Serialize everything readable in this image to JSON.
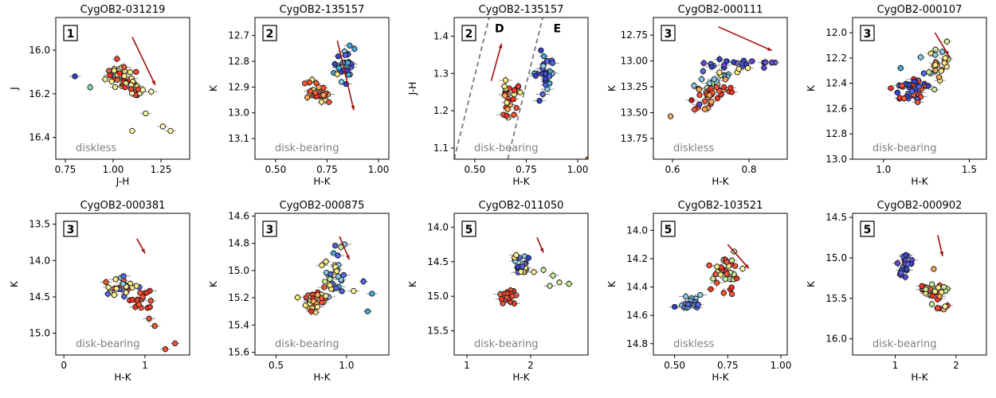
{
  "chart_data": [
    {
      "type": "scatter",
      "title": "CygOB2-031219",
      "badge": "1",
      "regime_label": "diskless",
      "xlabel": "J-H",
      "ylabel": "J",
      "xlim": [
        0.7,
        1.4
      ],
      "ylim": [
        16.5,
        15.85
      ],
      "xticks": [
        "0.75",
        "1.00",
        "1.25"
      ],
      "xtick_values": [
        0.75,
        1.0,
        1.25
      ],
      "yticks": [
        "16.0",
        "16.2",
        "16.4"
      ],
      "ytick_values": [
        16.0,
        16.2,
        16.4
      ],
      "arrow": {
        "from": [
          1.1,
          15.94
        ],
        "to": [
          1.22,
          16.16
        ]
      },
      "clusters": [
        {
          "cx": 1.06,
          "cy": 16.14,
          "sx": 0.045,
          "sy": 0.03,
          "n": 40,
          "tilt": 0.7,
          "colors": [
            "#ff3322",
            "#ff5533",
            "#ffee88",
            "#f0f080"
          ]
        },
        {
          "cx": 1.12,
          "cy": 16.18,
          "sx": 0.03,
          "sy": 0.02,
          "n": 10,
          "tilt": 0.3,
          "colors": [
            "#88cc88",
            "#ffffaa",
            "#ff4433"
          ]
        }
      ],
      "outliers": [
        {
          "x": 0.8,
          "y": 16.12,
          "c": "#3344cc"
        },
        {
          "x": 0.88,
          "y": 16.17,
          "c": "#88ddaa"
        },
        {
          "x": 1.02,
          "y": 16.04,
          "c": "#ff4433"
        },
        {
          "x": 1.17,
          "y": 16.29,
          "c": "#ffffaa"
        },
        {
          "x": 1.1,
          "y": 16.37,
          "c": "#ffffaa"
        },
        {
          "x": 1.26,
          "y": 16.35,
          "c": "#ffffaa"
        },
        {
          "x": 1.3,
          "y": 16.37,
          "c": "#ffffaa"
        },
        {
          "x": 1.12,
          "y": 16.1,
          "c": "#ff4433"
        }
      ]
    },
    {
      "type": "scatter",
      "title": "CygOB2-135157",
      "badge": "2",
      "regime_label": "disk-bearing",
      "xlabel": "H-K",
      "ylabel": "K",
      "xlim": [
        0.4,
        1.05
      ],
      "ylim": [
        13.18,
        12.63
      ],
      "xticks": [
        "0.50",
        "0.75",
        "1.00"
      ],
      "xtick_values": [
        0.5,
        0.75,
        1.0
      ],
      "yticks": [
        "12.7",
        "12.8",
        "12.9",
        "13.0",
        "13.1"
      ],
      "ytick_values": [
        12.7,
        12.8,
        12.9,
        13.0,
        13.1
      ],
      "arrow": {
        "from": [
          0.8,
          12.72
        ],
        "to": [
          0.88,
          12.99
        ]
      },
      "clusters": [
        {
          "cx": 0.7,
          "cy": 12.92,
          "sx": 0.025,
          "sy": 0.02,
          "n": 30,
          "tilt": 0.0,
          "colors": [
            "#ff3322",
            "#ff5533",
            "#ffaa55",
            "#ffee88"
          ]
        },
        {
          "cx": 0.84,
          "cy": 12.81,
          "sx": 0.025,
          "sy": 0.04,
          "n": 30,
          "tilt": -0.5,
          "colors": [
            "#3344cc",
            "#5566ee",
            "#44aadd",
            "#88ccee"
          ]
        }
      ],
      "outliers": [
        {
          "x": 0.82,
          "y": 12.88,
          "c": "#88ccee"
        },
        {
          "x": 0.8,
          "y": 12.85,
          "c": "#ffee88"
        }
      ]
    },
    {
      "type": "scatter",
      "title": "CygOB2-135157",
      "badge": "2",
      "regime_label": "disk-bearing",
      "xlabel": "H-K",
      "ylabel": "J-H",
      "xlim": [
        0.4,
        1.05
      ],
      "ylim": [
        1.07,
        1.45
      ],
      "xticks": [
        "0.50",
        "0.75",
        "1.00"
      ],
      "xtick_values": [
        0.5,
        0.75,
        1.0
      ],
      "yticks": [
        "1.1",
        "1.2",
        "1.3",
        "1.4"
      ],
      "ytick_values": [
        1.1,
        1.2,
        1.3,
        1.4
      ],
      "region_labels": [
        {
          "text": "D",
          "x": 0.62,
          "y": 1.41
        },
        {
          "text": "E",
          "x": 0.9,
          "y": 1.41
        }
      ],
      "dashed_lines": [
        {
          "x0": 0.4,
          "y0": 1.07,
          "x1": 0.57,
          "y1": 1.45
        },
        {
          "x0": 0.66,
          "y0": 1.07,
          "x1": 0.83,
          "y1": 1.45
        }
      ],
      "arrow": {
        "from": [
          0.58,
          1.28
        ],
        "to": [
          0.63,
          1.38
        ]
      },
      "clusters": [
        {
          "cx": 0.67,
          "cy": 1.24,
          "sx": 0.025,
          "sy": 0.025,
          "n": 30,
          "tilt": 0.0,
          "colors": [
            "#ff3322",
            "#ff5533",
            "#ffaa55",
            "#ffee88"
          ]
        },
        {
          "cx": 0.84,
          "cy": 1.31,
          "sx": 0.025,
          "sy": 0.025,
          "n": 30,
          "tilt": 0.0,
          "colors": [
            "#3344cc",
            "#5566ee",
            "#44aadd",
            "#88ccee"
          ]
        }
      ],
      "outliers": [
        {
          "x": 1.05,
          "y": 1.07,
          "c": "#ff9900"
        }
      ]
    },
    {
      "type": "scatter",
      "title": "CygOB2-000111",
      "badge": "3",
      "regime_label": "diskless",
      "xlabel": "H-K",
      "ylabel": "K",
      "xlim": [
        0.55,
        0.9
      ],
      "ylim": [
        13.95,
        12.58
      ],
      "xticks": [
        "0.6",
        "0.8"
      ],
      "xtick_values": [
        0.6,
        0.8
      ],
      "yticks": [
        "12.75",
        "13.00",
        "13.25",
        "13.50",
        "13.75"
      ],
      "ytick_values": [
        12.75,
        13.0,
        13.25,
        13.5,
        13.75
      ],
      "arrow": {
        "from": [
          0.72,
          12.67
        ],
        "to": [
          0.86,
          12.9
        ]
      },
      "clusters": [
        {
          "cx": 0.76,
          "cy": 13.02,
          "sx": 0.045,
          "sy": 0.02,
          "n": 22,
          "tilt": 0.0,
          "colors": [
            "#3344cc",
            "#5566ee",
            "#6644dd"
          ]
        },
        {
          "cx": 0.73,
          "cy": 13.15,
          "sx": 0.035,
          "sy": 0.05,
          "n": 18,
          "tilt": -0.8,
          "colors": [
            "#44aadd",
            "#88ccee",
            "#ffee88",
            "#ccee99"
          ]
        },
        {
          "cx": 0.7,
          "cy": 13.32,
          "sx": 0.035,
          "sy": 0.06,
          "n": 30,
          "tilt": -0.8,
          "colors": [
            "#ff3322",
            "#ff5533",
            "#ffaa55"
          ]
        }
      ],
      "outliers": [
        {
          "x": 0.65,
          "y": 13.38,
          "c": "#cc2211"
        },
        {
          "x": 0.67,
          "y": 13.42,
          "c": "#6644dd"
        },
        {
          "x": 0.68,
          "y": 13.1,
          "c": "#5566ee"
        }
      ]
    },
    {
      "type": "scatter",
      "title": "CygOB2-000107",
      "badge": "3",
      "regime_label": "disk-bearing",
      "xlabel": "H-K",
      "ylabel": "K",
      "xlim": [
        0.82,
        1.6
      ],
      "ylim": [
        13.0,
        11.88
      ],
      "xticks": [
        "1.0",
        "1.5"
      ],
      "xtick_values": [
        1.0,
        1.5
      ],
      "yticks": [
        "12.0",
        "12.2",
        "12.4",
        "12.6",
        "12.8",
        "13.0"
      ],
      "ytick_values": [
        12.0,
        12.2,
        12.4,
        12.6,
        12.8,
        13.0
      ],
      "arrow": {
        "from": [
          1.3,
          12.0
        ],
        "to": [
          1.38,
          12.18
        ]
      },
      "clusters": [
        {
          "cx": 1.17,
          "cy": 12.44,
          "sx": 0.05,
          "sy": 0.05,
          "n": 40,
          "tilt": -0.6,
          "colors": [
            "#ff3322",
            "#ff5533",
            "#3344cc",
            "#5566ee"
          ]
        },
        {
          "cx": 1.3,
          "cy": 12.28,
          "sx": 0.05,
          "sy": 0.06,
          "n": 28,
          "tilt": -0.8,
          "colors": [
            "#ffee88",
            "#ccee99",
            "#ffaa55",
            "#88ccee"
          ]
        }
      ],
      "outliers": [
        {
          "x": 1.37,
          "y": 12.07,
          "c": "#ccee99"
        },
        {
          "x": 1.1,
          "y": 12.28,
          "c": "#44aadd"
        },
        {
          "x": 1.12,
          "y": 12.52,
          "c": "#ff5533"
        }
      ]
    },
    {
      "type": "scatter",
      "title": "CygOB2-000381",
      "badge": "3",
      "regime_label": "disk-bearing",
      "xlabel": "H-K",
      "ylabel": "K",
      "xlim": [
        -0.1,
        1.55
      ],
      "ylim": [
        15.3,
        13.35
      ],
      "xticks": [
        "0",
        "1"
      ],
      "xtick_values": [
        0,
        1
      ],
      "yticks": [
        "13.5",
        "14.0",
        "14.5",
        "15.0"
      ],
      "ytick_values": [
        13.5,
        14.0,
        14.5,
        15.0
      ],
      "arrow": {
        "from": [
          0.9,
          13.7
        ],
        "to": [
          1.0,
          13.9
        ]
      },
      "clusters": [
        {
          "cx": 0.72,
          "cy": 14.34,
          "sx": 0.09,
          "sy": 0.06,
          "n": 30,
          "tilt": 0.0,
          "colors": [
            "#5566ee",
            "#88ccee",
            "#ffee88",
            "#ff5533"
          ]
        },
        {
          "cx": 0.95,
          "cy": 14.55,
          "sx": 0.07,
          "sy": 0.1,
          "n": 16,
          "tilt": 0.8,
          "colors": [
            "#ff3322",
            "#ff5533"
          ]
        }
      ],
      "outliers": [
        {
          "x": 1.05,
          "y": 14.8,
          "c": "#ff5533"
        },
        {
          "x": 1.12,
          "y": 14.9,
          "c": "#ff5533"
        },
        {
          "x": 1.25,
          "y": 15.22,
          "c": "#ff5533"
        },
        {
          "x": 1.37,
          "y": 15.14,
          "c": "#ff5533"
        }
      ]
    },
    {
      "type": "scatter",
      "title": "CygOB2-000875",
      "badge": "3",
      "regime_label": "disk-bearing",
      "xlabel": "H-K",
      "ylabel": "K",
      "xlim": [
        0.35,
        1.3
      ],
      "ylim": [
        15.62,
        14.58
      ],
      "xticks": [
        "0.5",
        "1.0"
      ],
      "xtick_values": [
        0.5,
        1.0
      ],
      "yticks": [
        "14.6",
        "14.8",
        "15.0",
        "15.2",
        "15.4",
        "15.6"
      ],
      "ytick_values": [
        14.6,
        14.8,
        15.0,
        15.2,
        15.4,
        15.6
      ],
      "arrow": {
        "from": [
          0.95,
          14.75
        ],
        "to": [
          1.02,
          14.92
        ]
      },
      "clusters": [
        {
          "cx": 0.78,
          "cy": 15.22,
          "sx": 0.06,
          "sy": 0.04,
          "n": 30,
          "tilt": -0.5,
          "colors": [
            "#ff3322",
            "#ff5533",
            "#ffaa55",
            "#ffee88"
          ]
        },
        {
          "cx": 0.92,
          "cy": 15.05,
          "sx": 0.05,
          "sy": 0.08,
          "n": 34,
          "tilt": -0.7,
          "colors": [
            "#ffee88",
            "#ccee99",
            "#88ccee",
            "#44aadd",
            "#5566ee"
          ]
        }
      ],
      "outliers": [
        {
          "x": 1.15,
          "y": 15.3,
          "c": "#44aadd"
        },
        {
          "x": 1.18,
          "y": 15.17,
          "c": "#44aadd"
        },
        {
          "x": 1.12,
          "y": 15.08,
          "c": "#5566ee"
        },
        {
          "x": 0.75,
          "y": 15.3,
          "c": "#ff3322"
        },
        {
          "x": 1.05,
          "y": 15.15,
          "c": "#ffffaa"
        }
      ]
    },
    {
      "type": "scatter",
      "title": "CygOB2-011050",
      "badge": "5",
      "regime_label": "disk-bearing",
      "xlabel": "H-K",
      "ylabel": "K",
      "xlim": [
        0.8,
        2.9
      ],
      "ylim": [
        15.85,
        13.8
      ],
      "xticks": [
        "1",
        "2"
      ],
      "xtick_values": [
        1,
        2
      ],
      "yticks": [
        "14.0",
        "14.5",
        "15.0",
        "15.5"
      ],
      "ytick_values": [
        14.0,
        14.5,
        15.0,
        15.5
      ],
      "arrow": {
        "from": [
          2.1,
          14.15
        ],
        "to": [
          2.2,
          14.37
        ]
      },
      "clusters": [
        {
          "cx": 1.65,
          "cy": 14.98,
          "sx": 0.07,
          "sy": 0.07,
          "n": 24,
          "tilt": -0.5,
          "colors": [
            "#ff3322",
            "#ff5533"
          ]
        },
        {
          "cx": 1.85,
          "cy": 14.55,
          "sx": 0.07,
          "sy": 0.08,
          "n": 22,
          "tilt": -0.3,
          "colors": [
            "#5566ee",
            "#3344cc",
            "#88ccee",
            "#ffee88"
          ]
        }
      ],
      "outliers": [
        {
          "x": 2.2,
          "y": 14.62,
          "c": "#ccee99"
        },
        {
          "x": 2.35,
          "y": 14.7,
          "c": "#ccee99"
        },
        {
          "x": 2.45,
          "y": 14.8,
          "c": "#ccee99"
        },
        {
          "x": 2.6,
          "y": 14.82,
          "c": "#ccee99"
        },
        {
          "x": 2.3,
          "y": 14.85,
          "c": "#ccee99"
        },
        {
          "x": 2.05,
          "y": 14.65,
          "c": "#ffee88"
        }
      ]
    },
    {
      "type": "scatter",
      "title": "CygOB2-103521",
      "badge": "5",
      "regime_label": "diskless",
      "xlabel": "H-K",
      "ylabel": "K",
      "xlim": [
        0.4,
        1.03
      ],
      "ylim": [
        14.88,
        13.88
      ],
      "xticks": [
        "0.50",
        "0.75",
        "1.00"
      ],
      "xtick_values": [
        0.5,
        0.75,
        1.0
      ],
      "yticks": [
        "14.0",
        "14.2",
        "14.4",
        "14.6",
        "14.8"
      ],
      "ytick_values": [
        14.0,
        14.2,
        14.4,
        14.6,
        14.8
      ],
      "arrow": {
        "from": [
          0.75,
          14.1
        ],
        "to": [
          0.85,
          14.27
        ]
      },
      "clusters": [
        {
          "cx": 0.57,
          "cy": 14.51,
          "sx": 0.025,
          "sy": 0.025,
          "n": 24,
          "tilt": 0.0,
          "colors": [
            "#44aadd",
            "#5566ee",
            "#88ccee"
          ]
        },
        {
          "cx": 0.73,
          "cy": 14.32,
          "sx": 0.03,
          "sy": 0.07,
          "n": 34,
          "tilt": -0.4,
          "colors": [
            "#ff3322",
            "#ff5533",
            "#ffee88",
            "#ccee99"
          ]
        }
      ],
      "outliers": [
        {
          "x": 0.5,
          "y": 14.54,
          "c": "#3344cc"
        },
        {
          "x": 0.82,
          "y": 14.27,
          "c": "#ffffaa"
        },
        {
          "x": 0.77,
          "y": 14.45,
          "c": "#ff5533"
        },
        {
          "x": 0.78,
          "y": 14.15,
          "c": "#ccee99"
        }
      ]
    },
    {
      "type": "scatter",
      "title": "CygOB2-000902",
      "badge": "5",
      "regime_label": "disk-bearing",
      "xlabel": "H-K",
      "ylabel": "K",
      "xlim": [
        0.3,
        2.5
      ],
      "ylim": [
        16.2,
        14.45
      ],
      "xticks": [
        "1",
        "2"
      ],
      "xtick_values": [
        1,
        2
      ],
      "yticks": [
        "14.5",
        "15.0",
        "15.5",
        "16.0"
      ],
      "ytick_values": [
        14.5,
        15.0,
        15.5,
        16.0
      ],
      "arrow": {
        "from": [
          1.7,
          14.72
        ],
        "to": [
          1.78,
          14.98
        ]
      },
      "clusters": [
        {
          "cx": 1.15,
          "cy": 15.12,
          "sx": 0.07,
          "sy": 0.09,
          "n": 22,
          "tilt": 0.0,
          "colors": [
            "#5566ee",
            "#6644dd",
            "#3344cc"
          ]
        },
        {
          "cx": 1.6,
          "cy": 15.43,
          "sx": 0.12,
          "sy": 0.1,
          "n": 34,
          "tilt": 0.7,
          "colors": [
            "#ff3322",
            "#ff5533",
            "#ffee88",
            "#ccee99",
            "#ffaa55"
          ]
        }
      ],
      "outliers": [
        {
          "x": 1.82,
          "y": 15.6,
          "c": "#ffffaa"
        },
        {
          "x": 1.7,
          "y": 15.62,
          "c": "#ff5533"
        }
      ]
    }
  ]
}
